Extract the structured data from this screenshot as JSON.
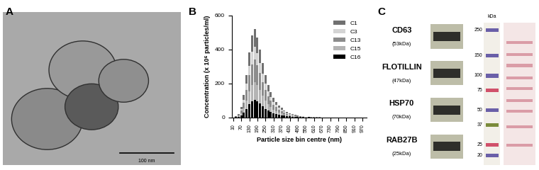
{
  "panel_labels": [
    "A",
    "B",
    "C"
  ],
  "image_A": {
    "scale_bar": "100 nm"
  },
  "chart_data": {
    "type": "bar",
    "stacked": true,
    "xlabel": "Particle size bin centre (nm)",
    "ylabel": "Concentration (x 10⁶ particles/ml)",
    "x": [
      10,
      30,
      50,
      70,
      90,
      110,
      130,
      150,
      170,
      190,
      210,
      230,
      250,
      270,
      290,
      310,
      330,
      350,
      370,
      390,
      410,
      430,
      450,
      470,
      490,
      510,
      530,
      550,
      570,
      590,
      610,
      630,
      650,
      670,
      690,
      710,
      730,
      750,
      770,
      790,
      810,
      830,
      850,
      870,
      890,
      910,
      930,
      950,
      970,
      990
    ],
    "series": [
      {
        "name": "C1",
        "color": "#707070",
        "values": [
          0,
          1,
          4,
          12,
          26,
          50,
          76,
          96,
          104,
          94,
          80,
          64,
          50,
          38,
          30,
          23,
          18,
          14,
          11,
          8,
          7,
          5,
          4,
          3,
          2,
          2,
          1,
          1,
          0,
          1,
          1,
          0,
          0,
          0,
          0,
          0,
          0,
          0,
          0,
          0,
          0,
          0,
          0,
          0,
          0,
          0,
          0,
          0,
          0,
          0
        ]
      },
      {
        "name": "C3",
        "color": "#d4d4d4",
        "values": [
          0,
          1,
          3,
          9,
          20,
          38,
          57,
          72,
          78,
          70,
          60,
          48,
          38,
          28,
          22,
          17,
          13,
          10,
          8,
          6,
          5,
          4,
          3,
          2,
          2,
          1,
          1,
          1,
          0,
          0,
          0,
          0,
          0,
          0,
          0,
          0,
          0,
          0,
          0,
          0,
          0,
          0,
          0,
          0,
          0,
          0,
          0,
          0,
          0,
          0
        ]
      },
      {
        "name": "C13",
        "color": "#8c8c8c",
        "values": [
          0,
          1,
          5,
          15,
          32,
          62,
          95,
          120,
          130,
          118,
          100,
          80,
          62,
          48,
          38,
          29,
          23,
          18,
          14,
          11,
          8,
          6,
          5,
          4,
          2,
          2,
          2,
          1,
          1,
          1,
          1,
          1,
          1,
          0,
          0,
          0,
          0,
          0,
          0,
          0,
          0,
          0,
          0,
          0,
          0,
          0,
          0,
          0,
          0,
          0
        ]
      },
      {
        "name": "C15",
        "color": "#b4b4b4",
        "values": [
          0,
          1,
          4,
          12,
          26,
          50,
          76,
          96,
          104,
          94,
          80,
          64,
          50,
          38,
          30,
          23,
          18,
          14,
          11,
          8,
          6,
          5,
          4,
          3,
          2,
          2,
          1,
          1,
          1,
          0,
          0,
          0,
          0,
          0,
          0,
          0,
          0,
          0,
          0,
          0,
          0,
          0,
          0,
          0,
          0,
          0,
          0,
          0,
          0,
          0
        ]
      },
      {
        "name": "C16",
        "color": "#000000",
        "values": [
          0,
          1,
          4,
          12,
          26,
          50,
          76,
          96,
          104,
          94,
          80,
          64,
          50,
          38,
          30,
          23,
          18,
          14,
          11,
          9,
          6,
          5,
          3,
          2,
          2,
          1,
          1,
          0,
          1,
          0,
          0,
          0,
          0,
          0,
          0,
          0,
          0,
          0,
          0,
          0,
          0,
          0,
          0,
          0,
          0,
          0,
          0,
          0,
          0,
          0
        ]
      }
    ],
    "xlim": [
      0,
      1000
    ],
    "ylim": [
      0,
      600
    ],
    "xticks": [
      10,
      70,
      130,
      190,
      250,
      310,
      370,
      430,
      490,
      550,
      610,
      670,
      730,
      790,
      850,
      910,
      970
    ],
    "yticks": [
      0,
      200,
      400,
      600
    ],
    "legend": "upper right"
  },
  "blot_C": {
    "proteins": [
      {
        "name": "CD63",
        "mass": "(53kDa)"
      },
      {
        "name": "FLOTILLIN",
        "mass": "(47kDa)"
      },
      {
        "name": "HSP70",
        "mass": "(70kDa)"
      },
      {
        "name": "RAB27B",
        "mass": "(25kDa)"
      }
    ],
    "ladder": {
      "unit": "kDa",
      "marks": [
        250,
        150,
        100,
        75,
        50,
        37,
        25,
        20
      ]
    }
  }
}
